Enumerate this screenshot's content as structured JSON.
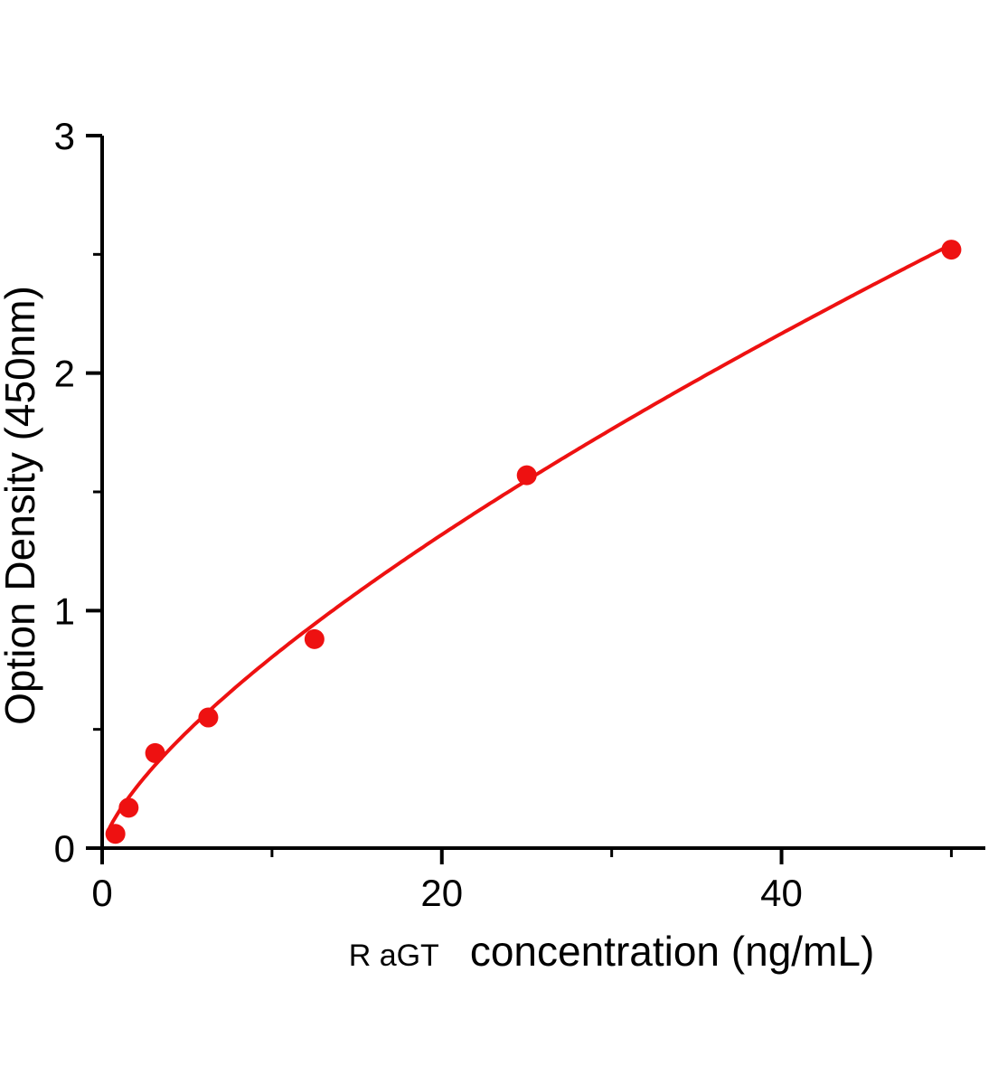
{
  "page": {
    "background_color": "#ffffff"
  },
  "chart_data": {
    "type": "scatter",
    "title": "",
    "xlabel_prefix": "R aGT",
    "xlabel": "concentration (ng/mL)",
    "ylabel": "Option Density  (450nm)",
    "x_ticks": [
      0,
      20,
      40
    ],
    "x_minor_ticks": [
      10,
      30,
      50
    ],
    "y_ticks": [
      0,
      1,
      2,
      3
    ],
    "y_minor_ticks": [
      0.5,
      1.5,
      2.5
    ],
    "xlim": [
      0,
      52
    ],
    "ylim": [
      0,
      3
    ],
    "grid": false,
    "legend": "none",
    "points": [
      {
        "x": 0.78,
        "y": 0.06
      },
      {
        "x": 1.56,
        "y": 0.17
      },
      {
        "x": 3.12,
        "y": 0.4
      },
      {
        "x": 6.25,
        "y": 0.55
      },
      {
        "x": 12.5,
        "y": 0.88
      },
      {
        "x": 25,
        "y": 1.57
      },
      {
        "x": 50,
        "y": 2.52
      }
    ],
    "fit_curve": {
      "type": "power",
      "a": 0.155,
      "b": 0.715,
      "x_start": 0.45,
      "x_end": 50
    },
    "series_color": "#ee1111",
    "axis_color": "#000000",
    "text_color": "#000000"
  }
}
